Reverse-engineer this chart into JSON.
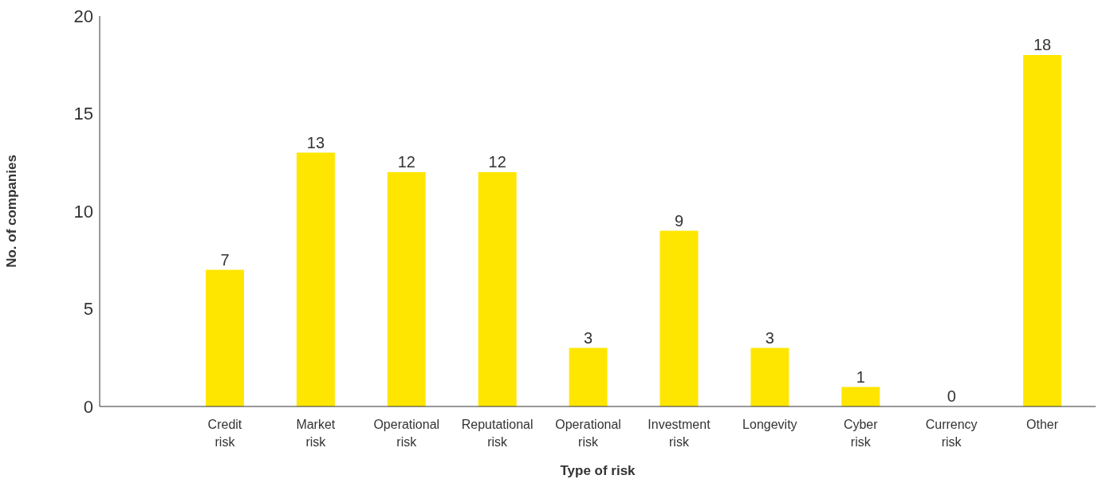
{
  "chart_data": {
    "type": "bar",
    "xlabel": "Type of risk",
    "ylabel": "No. of companies",
    "categories": [
      "Credit risk",
      "Market risk",
      "Operational risk",
      "Reputational risk",
      "Operational risk",
      "Investment risk",
      "Longevity",
      "Cyber risk",
      "Currency risk",
      "Other"
    ],
    "values": [
      7,
      13,
      12,
      12,
      3,
      9,
      3,
      1,
      0,
      18
    ],
    "color": "#ffe600",
    "ylim": [
      0,
      20
    ],
    "yticks": [
      0,
      5,
      10,
      15,
      20
    ],
    "grid": false,
    "legend": false,
    "data_labels": true
  }
}
